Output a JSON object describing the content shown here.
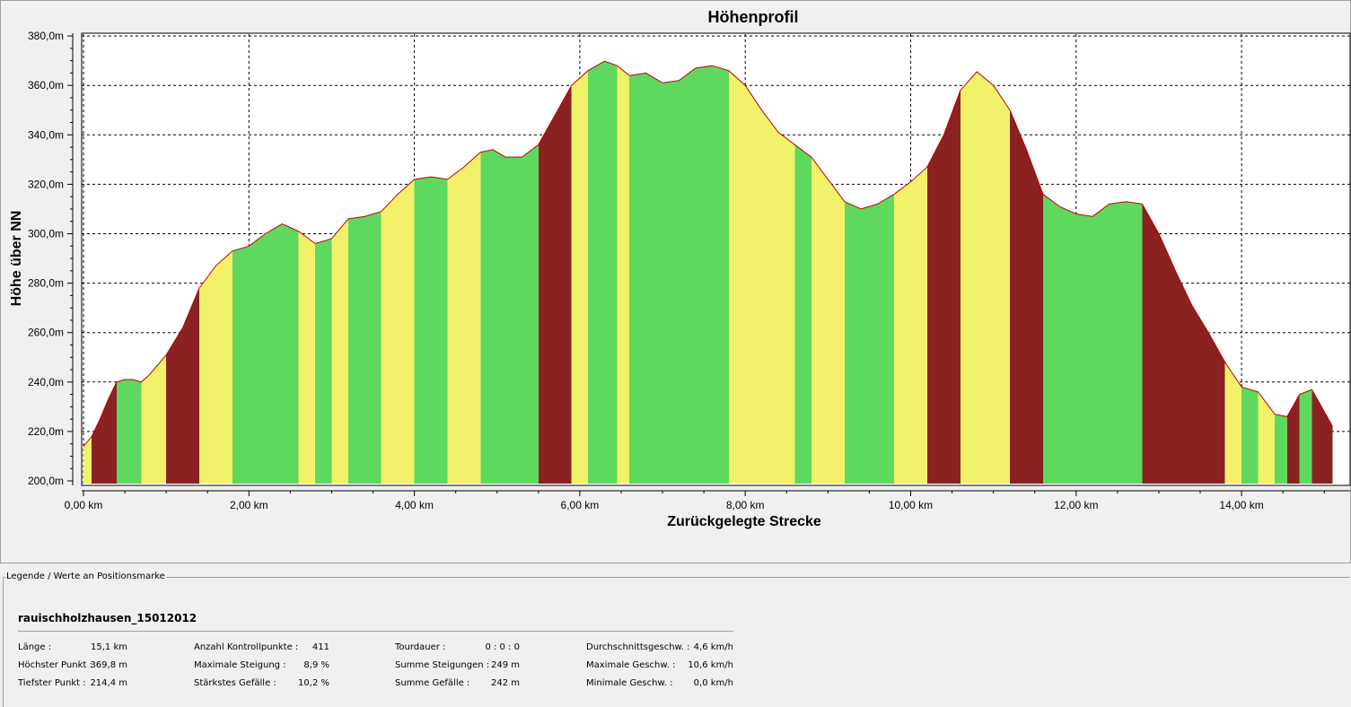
{
  "chart_data": {
    "type": "area",
    "title": "Höhenprofil",
    "xlabel": "Zurückgelegte Strecke",
    "ylabel": "Höhe über NN",
    "xlim": [
      0,
      15.1
    ],
    "ylim": [
      200,
      380
    ],
    "xticks": [
      0,
      2,
      4,
      6,
      8,
      10,
      12,
      14
    ],
    "xtick_labels": [
      "0,00 km",
      "2,00 km",
      "4,00 km",
      "6,00 km",
      "8,00 km",
      "10,00 km",
      "12,00 km",
      "14,00 km"
    ],
    "yticks": [
      200,
      220,
      240,
      260,
      280,
      300,
      320,
      340,
      360,
      380
    ],
    "ytick_labels": [
      "200,0m",
      "220,0m",
      "240,0m",
      "260,0m",
      "280,0m",
      "300,0m",
      "320,0m",
      "340,0m",
      "360,0m",
      "380,0m"
    ],
    "grid": true,
    "fill_coloring": "by gradient: green = flat, yellow = moderate, dark red = steep",
    "series": [
      {
        "x": [
          0,
          0.1,
          0.2,
          0.3,
          0.4,
          0.5,
          0.6,
          0.7,
          0.8,
          1.0,
          1.2,
          1.4,
          1.6,
          1.8,
          2.0,
          2.2,
          2.4,
          2.6,
          2.8,
          3.0,
          3.2,
          3.4,
          3.6,
          3.8,
          4.0,
          4.2,
          4.4,
          4.6,
          4.8,
          4.95,
          5.1,
          5.3,
          5.5,
          5.7,
          5.9,
          6.1,
          6.3,
          6.45,
          6.6,
          6.8,
          7.0,
          7.2,
          7.4,
          7.6,
          7.8,
          8.0,
          8.2,
          8.4,
          8.6,
          8.8,
          9.0,
          9.2,
          9.4,
          9.6,
          9.8,
          10.0,
          10.2,
          10.4,
          10.6,
          10.8,
          11.0,
          11.2,
          11.4,
          11.6,
          11.8,
          12.0,
          12.2,
          12.4,
          12.6,
          12.8,
          13.0,
          13.2,
          13.4,
          13.6,
          13.8,
          14.0,
          14.2,
          14.4,
          14.55,
          14.7,
          14.85,
          15.0,
          15.1
        ],
        "y": [
          214,
          218,
          225,
          233,
          240,
          241,
          241,
          240,
          243,
          251,
          262,
          278,
          287,
          293,
          295,
          300,
          304,
          301,
          296,
          298,
          306,
          307,
          309,
          316,
          322,
          323,
          322,
          327,
          333,
          334,
          331,
          331,
          336,
          348,
          360,
          366,
          369.8,
          368,
          364,
          365,
          361,
          362,
          367,
          368,
          366,
          360,
          350,
          341,
          336,
          331,
          322,
          313,
          310,
          312,
          316,
          321,
          327,
          340,
          358,
          365.5,
          360,
          350,
          334,
          316,
          311,
          308,
          307,
          312,
          313,
          312,
          300,
          285,
          271,
          260,
          248,
          238,
          236,
          227,
          226,
          235,
          237,
          228,
          222
        ]
      }
    ]
  },
  "legend": {
    "title": "Legende / Werte an Positionsmarke",
    "track_name": "rauischholzhausen_15012012",
    "stats": [
      {
        "label": "Länge :",
        "value": "15,1 km"
      },
      {
        "label": "Höchster Punkt :",
        "value": "369,8 m"
      },
      {
        "label": "Tiefster Punkt :",
        "value": "214,4 m"
      },
      {
        "label": "Anzahl Kontrollpunkte :",
        "value": "411"
      },
      {
        "label": "Maximale Steigung :",
        "value": "8,9 %"
      },
      {
        "label": "Stärkstes Gefälle :",
        "value": "10,2 %"
      },
      {
        "label": "Tourdauer :",
        "value": "0 : 0 : 0"
      },
      {
        "label": "Summe Steigungen :",
        "value": "249 m"
      },
      {
        "label": "Summe Gefälle :",
        "value": "242 m"
      },
      {
        "label": "Durchschnittsgeschw. :",
        "value": "4,6 km/h"
      },
      {
        "label": "Maximale Geschw. :",
        "value": "10,6 km/h"
      },
      {
        "label": "Minimale Geschw. :",
        "value": "0,0 km/h"
      }
    ]
  },
  "colors": {
    "flat": "#5ed85e",
    "moderate": "#f2f26a",
    "steep": "#8a2222",
    "profile_line": "#c00000",
    "grid": "#000000",
    "background": "#f0f0f0",
    "plot_background": "#ffffff"
  }
}
